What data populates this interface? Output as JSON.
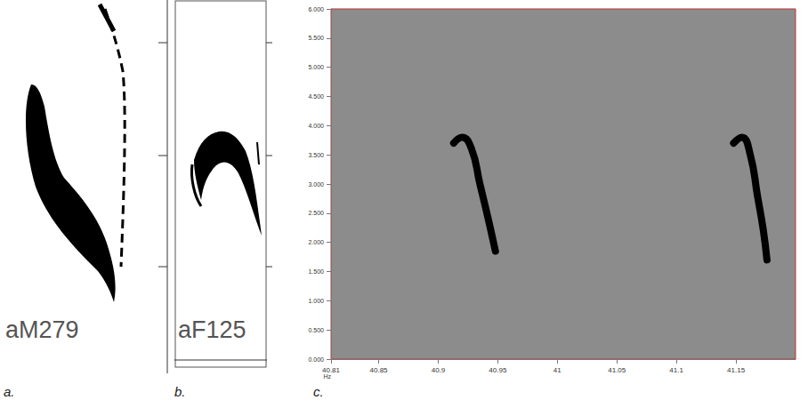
{
  "panels": [
    {
      "letter": "a.",
      "label": "aM279"
    },
    {
      "letter": "b.",
      "label": "aF125"
    }
  ],
  "chart_data": {
    "type": "line",
    "letter": "c.",
    "y_label": "Hz",
    "xlim": [
      40.81,
      41.2
    ],
    "xticks": [
      40.81,
      40.85,
      40.9,
      40.95,
      41,
      41.05,
      41.1,
      41.15
    ],
    "ylim": [
      0,
      6
    ],
    "yticks": [
      {
        "value": 0,
        "label": "0.000"
      },
      {
        "value": 0.5,
        "label": "0.500"
      },
      {
        "value": 1,
        "label": "1.000"
      },
      {
        "value": 1.5,
        "label": "1.500"
      },
      {
        "value": 2,
        "label": "2.000"
      },
      {
        "value": 2.5,
        "label": "2.500"
      },
      {
        "value": 3,
        "label": "3.000"
      },
      {
        "value": 3.5,
        "label": "3.500"
      },
      {
        "value": 4,
        "label": "4.000"
      },
      {
        "value": 4.5,
        "label": "4.500"
      },
      {
        "value": 5,
        "label": "5.000"
      },
      {
        "value": 5.5,
        "label": "5.500"
      },
      {
        "value": 6,
        "label": "6.000"
      }
    ],
    "grid": false,
    "series": [
      {
        "color": "#000000",
        "x": [
          40.913,
          40.92,
          40.928,
          40.935,
          40.942,
          40.948
        ],
        "values": [
          3.7,
          3.8,
          3.6,
          3.0,
          2.4,
          1.85
        ]
      },
      {
        "color": "#000000",
        "x": [
          41.148,
          41.155,
          41.162,
          41.168,
          41.173,
          41.176
        ],
        "values": [
          3.7,
          3.8,
          3.5,
          2.8,
          2.2,
          1.7
        ]
      }
    ]
  }
}
